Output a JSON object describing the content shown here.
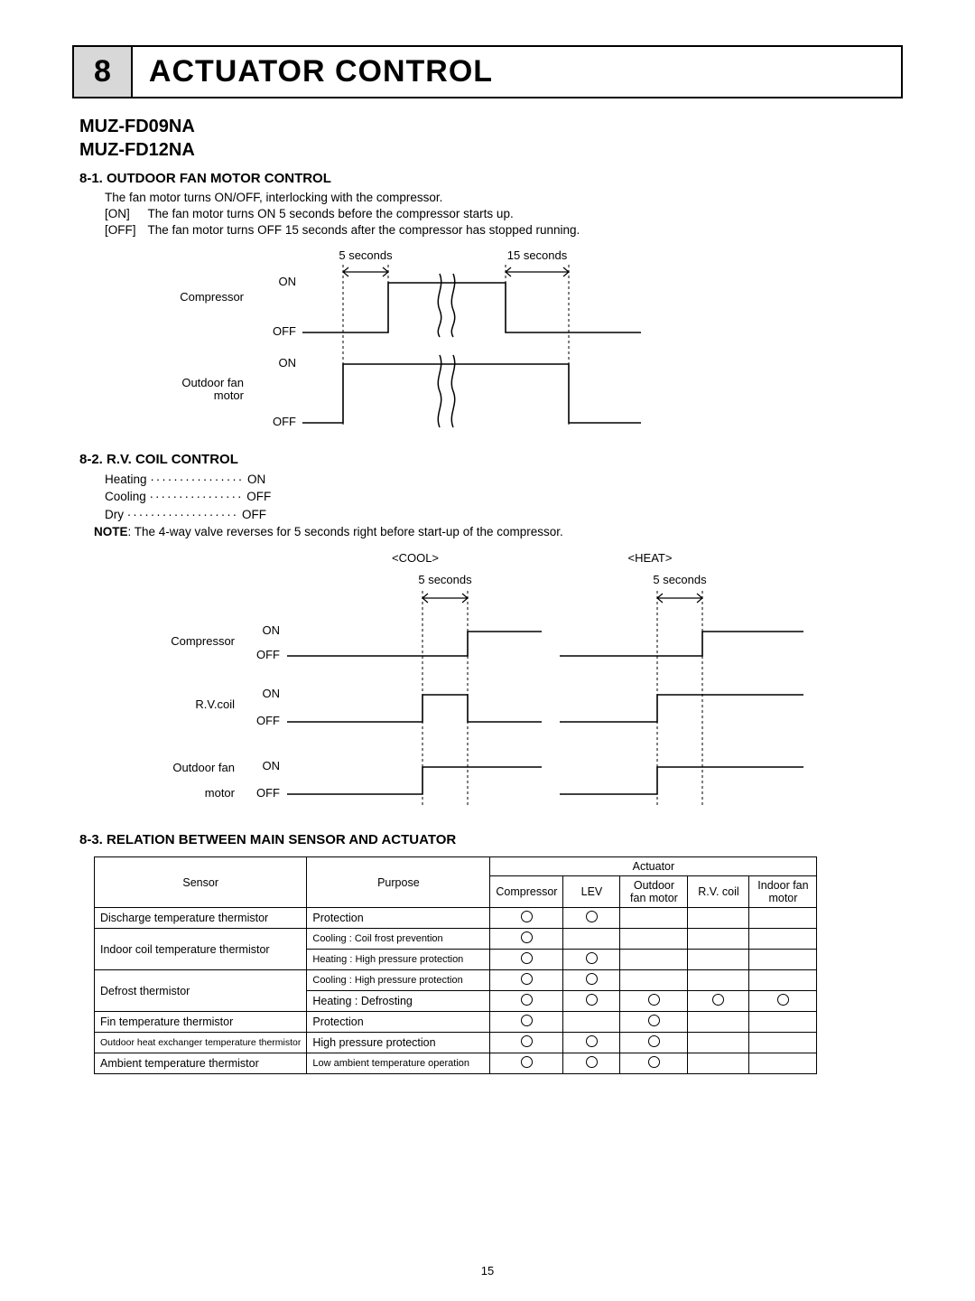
{
  "header": {
    "num": "8",
    "title": "ACTUATOR CONTROL"
  },
  "models": [
    "MUZ-FD09NA",
    "MUZ-FD12NA"
  ],
  "s81": {
    "heading": "8-1. OUTDOOR FAN MOTOR CONTROL",
    "line1": "The fan motor turns ON/OFF, interlocking with the compressor.",
    "line2a": "[ON]",
    "line2b": "The fan motor turns ON 5 seconds before the compressor starts up.",
    "line3a": "[OFF]",
    "line3b": "The fan motor turns OFF 15 seconds after the compressor has stopped running.",
    "d1": {
      "t5": "5 seconds",
      "t15": "15 seconds",
      "labComp": "Compressor",
      "labFan1": "Outdoor fan",
      "labFan2": "motor",
      "on": "ON",
      "off": "OFF"
    }
  },
  "s82": {
    "heading": "8-2. R.V. COIL CONTROL",
    "rows": [
      {
        "k": "Heating",
        "v": "ON"
      },
      {
        "k": "Cooling",
        "v": "OFF"
      },
      {
        "k": "Dry",
        "v": "OFF"
      }
    ],
    "note": "The 4-way valve reverses for 5 seconds right before start-up of the compressor.",
    "d2": {
      "cool": "<COOL>",
      "heat": "<HEAT>",
      "t5": "5 seconds",
      "labComp": "Compressor",
      "labRV": "R.V.coil",
      "labFan1": "Outdoor fan",
      "labFan2": "motor",
      "on": "ON",
      "off": "OFF"
    }
  },
  "s83": {
    "heading": "8-3. RELATION BETWEEN MAIN SENSOR AND ACTUATOR",
    "headers": {
      "sensor": "Sensor",
      "purpose": "Purpose",
      "actuator": "Actuator",
      "c1": "Compressor",
      "c2": "LEV",
      "c3a": "Outdoor",
      "c3b": "fan motor",
      "c4": "R.V. coil",
      "c5a": "Indoor fan",
      "c5b": "motor"
    },
    "rows": [
      {
        "sensor": "Discharge temperature thermistor",
        "purpose": "Protection",
        "m": [
          1,
          1,
          0,
          0,
          0
        ],
        "srows": 1
      },
      {
        "sensor": "Indoor coil temperature thermistor",
        "purpose": "Cooling : Coil frost prevention",
        "m": [
          1,
          0,
          0,
          0,
          0
        ],
        "srows": 2
      },
      {
        "sensor": "",
        "purpose": "Heating : High pressure protection",
        "m": [
          1,
          1,
          0,
          0,
          0
        ],
        "srows": 0
      },
      {
        "sensor": "Defrost thermistor",
        "purpose": "Cooling : High pressure protection",
        "m": [
          1,
          1,
          0,
          0,
          0
        ],
        "srows": 2
      },
      {
        "sensor": "",
        "purpose": "Heating : Defrosting",
        "m": [
          1,
          1,
          1,
          1,
          1
        ],
        "srows": 0
      },
      {
        "sensor": "Fin temperature thermistor",
        "purpose": "Protection",
        "m": [
          1,
          0,
          1,
          0,
          0
        ],
        "srows": 1
      },
      {
        "sensor": "Outdoor heat exchanger temperature thermistor",
        "purpose": "High pressure protection",
        "m": [
          1,
          1,
          1,
          0,
          0
        ],
        "srows": 1
      },
      {
        "sensor": "Ambient temperature thermistor",
        "purpose": "Low ambient temperature operation",
        "m": [
          1,
          1,
          1,
          0,
          0
        ],
        "srows": 1
      }
    ]
  },
  "pageNum": "15"
}
